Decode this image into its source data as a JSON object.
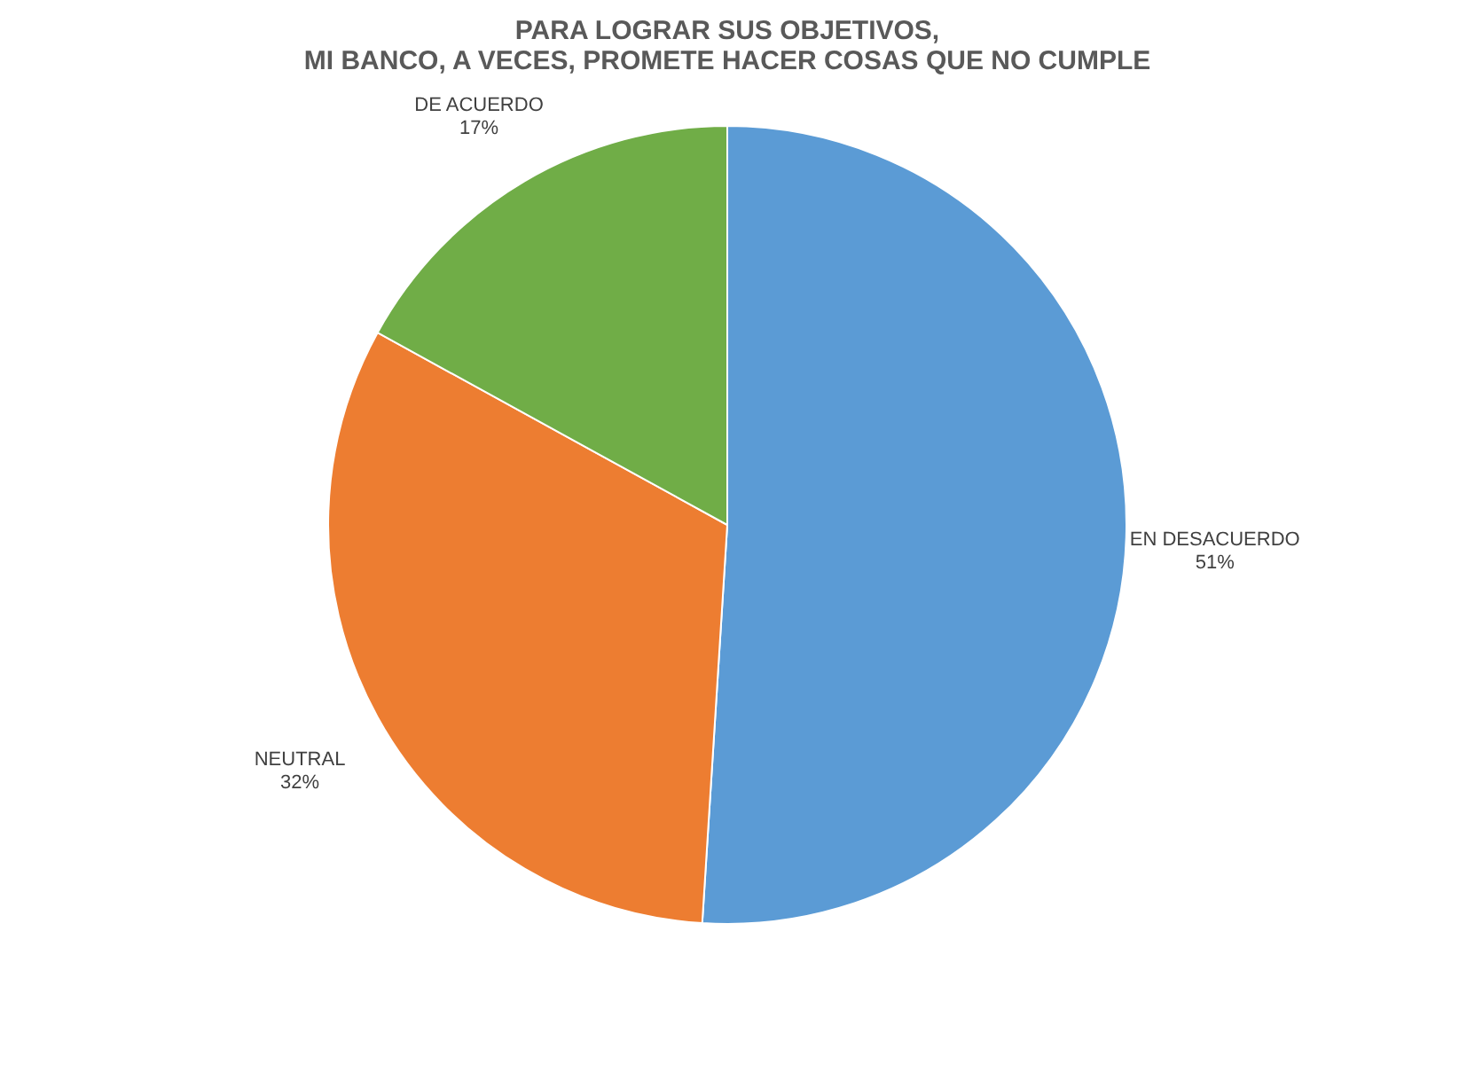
{
  "chart_data": {
    "type": "pie",
    "title": "PARA LOGRAR SUS OBJETIVOS,\nMI BANCO, A VECES, PROMETE HACER COSAS QUE NO CUMPLE",
    "categories": [
      "EN DESACUERDO",
      "NEUTRAL",
      "DE ACUERDO"
    ],
    "values": [
      51,
      32,
      17
    ],
    "colors": [
      "#5b9bd5",
      "#ed7d31",
      "#70ad47"
    ],
    "value_labels": [
      "51%",
      "32%",
      "17%"
    ]
  }
}
